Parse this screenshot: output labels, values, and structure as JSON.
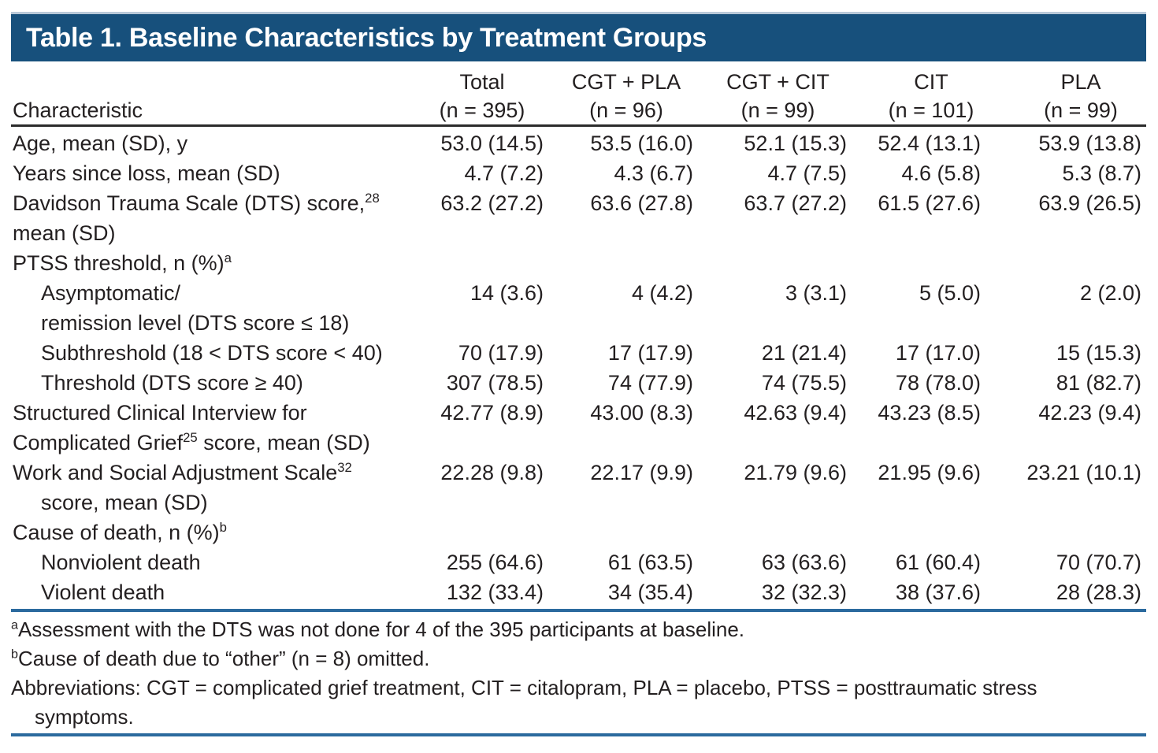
{
  "title": "Table 1. Baseline Characteristics by Treatment Groups",
  "colors": {
    "header_bar": "#17507c",
    "bar_top_edge": "#b9c9d9",
    "dark_rule": "#2b2b2b",
    "blue_rule": "#2b6a9e",
    "text_color": "#231f20"
  },
  "table": {
    "characteristic_header": "Characteristic",
    "columns": [
      {
        "line1": "Total",
        "line2": "(n = 395)"
      },
      {
        "line1": "CGT + PLA",
        "line2": "(n = 96)"
      },
      {
        "line1": "CGT + CIT",
        "line2": "(n = 99)"
      },
      {
        "line1": "CIT",
        "line2": "(n = 101)"
      },
      {
        "line1": "PLA",
        "line2": "(n = 99)"
      }
    ],
    "rows": [
      {
        "label_lines": [
          [
            {
              "t": "Age, mean (SD), y"
            }
          ]
        ],
        "indents": [
          0
        ],
        "values": [
          "53.0 (14.5)",
          "53.5 (16.0)",
          "52.1 (15.3)",
          "52.4 (13.1)",
          "53.9 (13.8)"
        ]
      },
      {
        "label_lines": [
          [
            {
              "t": "Years since loss, mean (SD)"
            }
          ]
        ],
        "indents": [
          0
        ],
        "values": [
          "4.7 (7.2)",
          "4.3 (6.7)",
          "4.7 (7.5)",
          "4.6 (5.8)",
          "5.3 (8.7)"
        ]
      },
      {
        "label_lines": [
          [
            {
              "t": "Davidson Trauma Scale (DTS) score,"
            },
            {
              "s": "28"
            }
          ],
          [
            {
              "t": "mean (SD)"
            }
          ]
        ],
        "indents": [
          0,
          0
        ],
        "values": [
          "63.2 (27.2)",
          "63.6 (27.8)",
          "63.7 (27.2)",
          "61.5 (27.6)",
          "63.9 (26.5)"
        ]
      },
      {
        "label_lines": [
          [
            {
              "t": "PTSS threshold, n (%)"
            },
            {
              "s": "a"
            }
          ]
        ],
        "indents": [
          0
        ],
        "values": []
      },
      {
        "label_lines": [
          [
            {
              "t": "Asymptomatic/"
            }
          ],
          [
            {
              "t": "remission level (DTS score ≤ 18)"
            }
          ]
        ],
        "indents": [
          1,
          1
        ],
        "values": [
          "14 (3.6)",
          "4 (4.2)",
          "3 (3.1)",
          "5 (5.0)",
          "2 (2.0)"
        ]
      },
      {
        "label_lines": [
          [
            {
              "t": "Subthreshold (18 < DTS score < 40)"
            }
          ]
        ],
        "indents": [
          1
        ],
        "values": [
          "70 (17.9)",
          "17 (17.9)",
          "21 (21.4)",
          "17 (17.0)",
          "15 (15.3)"
        ]
      },
      {
        "label_lines": [
          [
            {
              "t": "Threshold (DTS score ≥ 40)"
            }
          ]
        ],
        "indents": [
          1
        ],
        "values": [
          "307 (78.5)",
          "74 (77.9)",
          "74 (75.5)",
          "78 (78.0)",
          "81 (82.7)"
        ]
      },
      {
        "label_lines": [
          [
            {
              "t": "Structured Clinical Interview for"
            }
          ],
          [
            {
              "t": "Complicated Grief"
            },
            {
              "s": "25"
            },
            {
              "t": " score, mean (SD)"
            }
          ]
        ],
        "indents": [
          0,
          0
        ],
        "values": [
          "42.77 (8.9)",
          "43.00 (8.3)",
          "42.63 (9.4)",
          "43.23 (8.5)",
          "42.23 (9.4)"
        ]
      },
      {
        "label_lines": [
          [
            {
              "t": "Work and Social Adjustment Scale"
            },
            {
              "s": "32"
            }
          ],
          [
            {
              "t": "score, mean (SD)"
            }
          ]
        ],
        "indents": [
          0,
          1
        ],
        "values": [
          "22.28 (9.8)",
          "22.17 (9.9)",
          "21.79 (9.6)",
          "21.95 (9.6)",
          "23.21 (10.1)"
        ]
      },
      {
        "label_lines": [
          [
            {
              "t": "Cause of death, n (%)"
            },
            {
              "s": "b"
            }
          ]
        ],
        "indents": [
          0
        ],
        "values": []
      },
      {
        "label_lines": [
          [
            {
              "t": "Nonviolent death"
            }
          ]
        ],
        "indents": [
          1
        ],
        "values": [
          "255 (64.6)",
          "61 (63.5)",
          "63 (63.6)",
          "61 (60.4)",
          "70 (70.7)"
        ]
      },
      {
        "label_lines": [
          [
            {
              "t": "Violent death"
            }
          ]
        ],
        "indents": [
          1
        ],
        "values": [
          "132 (33.4)",
          "34 (35.4)",
          "32 (32.3)",
          "38 (37.6)",
          "28 (28.3)"
        ]
      }
    ]
  },
  "footnotes": [
    {
      "sup": "a",
      "lines": [
        "Assessment with the DTS was not done for 4 of the 395 participants at baseline."
      ]
    },
    {
      "sup": "b",
      "lines": [
        "Cause of death due to “other” (n = 8) omitted."
      ]
    },
    {
      "sup": "",
      "lines": [
        "Abbreviations: CGT = complicated grief treatment, CIT = citalopram, PLA = placebo, PTSS = posttraumatic stress",
        "symptoms."
      ]
    }
  ]
}
